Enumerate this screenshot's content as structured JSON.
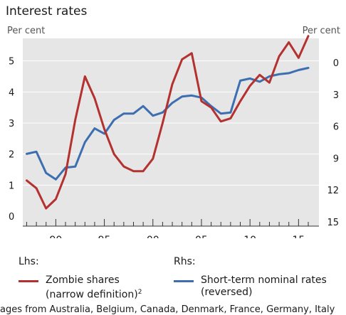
{
  "title": "Interest rates",
  "left_unit": "Per cent",
  "right_unit": "Per cent",
  "legend": {
    "lhs_heading": "Lhs:",
    "rhs_heading": "Rhs:",
    "lhs_series_line1": "Zombie shares",
    "lhs_series_line2": "(narrow definition)",
    "lhs_series_sup": "2",
    "rhs_series_line1": "Short-term nominal rates",
    "rhs_series_line2": "(reversed)"
  },
  "footnote": "ages from Australia, Belgium, Canada, Denmark, France, Germany, Italy",
  "colors": {
    "zombie": "#b3312f",
    "rates": "#3d6fb0",
    "plot_bg": "#e6e6e6",
    "grid": "#ffffff"
  },
  "chart_data": {
    "type": "line",
    "x_tick_labels": [
      "90",
      "95",
      "00",
      "05",
      "10",
      "15"
    ],
    "x_tick_values": [
      1990,
      1995,
      2000,
      2005,
      2010,
      2015
    ],
    "xlim": [
      1986.6,
      2017.1
    ],
    "y_left": {
      "ticks": [
        0,
        1,
        2,
        3,
        4,
        5
      ],
      "labels": [
        "0",
        "1",
        "2",
        "3",
        "4",
        "5"
      ],
      "range": [
        0,
        6
      ]
    },
    "y_right": {
      "ticks": [
        0,
        3,
        6,
        9,
        12,
        15
      ],
      "labels": [
        "0",
        "3",
        "6",
        "9",
        "12",
        "15"
      ],
      "range": [
        -3.5,
        15
      ],
      "reversed": true
    },
    "grid": true,
    "series": [
      {
        "name": "Zombie shares (narrow definition)",
        "axis": "left",
        "x": [
          1987,
          1988,
          1989,
          1990,
          1991,
          1992,
          1993,
          1994,
          1995,
          1996,
          1997,
          1998,
          1999,
          2000,
          2001,
          2002,
          2003,
          2004,
          2005,
          2006,
          2007,
          2008,
          2009,
          2010,
          2011,
          2012,
          2013,
          2014,
          2015,
          2016
        ],
        "values": [
          1.15,
          0.9,
          0.25,
          0.55,
          1.35,
          3.1,
          4.5,
          3.8,
          2.8,
          2.0,
          1.6,
          1.45,
          1.45,
          1.85,
          3.0,
          4.25,
          5.05,
          5.25,
          3.7,
          3.5,
          3.05,
          3.15,
          3.7,
          4.2,
          4.55,
          4.3,
          5.15,
          5.6,
          5.1,
          5.8
        ]
      },
      {
        "name": "Short-term nominal rates (reversed)",
        "axis": "right",
        "x": [
          1987,
          1988,
          1989,
          1990,
          1991,
          1992,
          1993,
          1994,
          1995,
          1996,
          1997,
          1998,
          1999,
          2000,
          2001,
          2002,
          2003,
          2004,
          2005,
          2006,
          2007,
          2008,
          2009,
          2010,
          2011,
          2012,
          2013,
          2014,
          2015,
          2016
        ],
        "values": [
          8.6,
          8.4,
          10.4,
          11.0,
          9.9,
          9.8,
          7.5,
          6.2,
          6.7,
          5.4,
          4.8,
          4.8,
          4.1,
          5.0,
          4.7,
          3.8,
          3.2,
          3.1,
          3.3,
          4.1,
          4.8,
          4.7,
          1.7,
          1.5,
          1.8,
          1.3,
          1.1,
          1.0,
          0.7,
          0.5
        ]
      }
    ]
  }
}
